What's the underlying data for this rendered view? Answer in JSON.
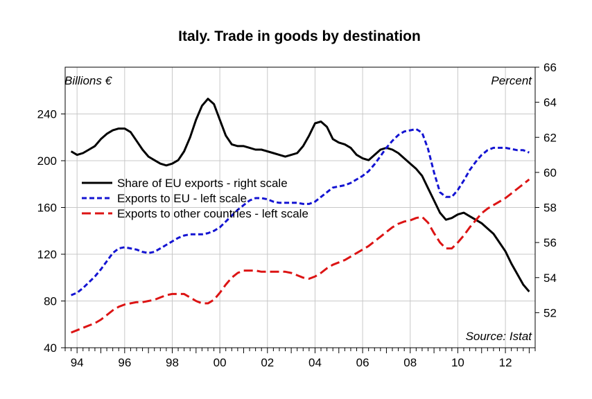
{
  "chart_data": {
    "type": "line",
    "title": "Italy. Trade in goods by destination",
    "left_unit_label": "Billions €",
    "right_unit_label": "Percent",
    "source": "Source: Istat",
    "x_range": [
      1993.5,
      2013.25
    ],
    "left_axis": {
      "ylim": [
        40,
        280
      ],
      "ticks": [
        40,
        80,
        120,
        160,
        200,
        240
      ]
    },
    "right_axis": {
      "ylim": [
        52,
        66
      ],
      "ticks": [
        52,
        54,
        56,
        58,
        60,
        62,
        64,
        66
      ]
    },
    "x_ticks": [
      {
        "x": 1994,
        "label": "94"
      },
      {
        "x": 1996,
        "label": "96"
      },
      {
        "x": 1998,
        "label": "98"
      },
      {
        "x": 2000,
        "label": "00"
      },
      {
        "x": 2002,
        "label": "02"
      },
      {
        "x": 2004,
        "label": "04"
      },
      {
        "x": 2006,
        "label": "06"
      },
      {
        "x": 2008,
        "label": "08"
      },
      {
        "x": 2010,
        "label": "10"
      },
      {
        "x": 2012,
        "label": "12"
      }
    ],
    "grid": true,
    "legend_position": "middle-left",
    "series": [
      {
        "name": "Share of EU exports - right scale",
        "axis": "right",
        "color": "#000000",
        "dash": "solid",
        "points": [
          [
            1993.75,
            61.2
          ],
          [
            1994.0,
            61.0
          ],
          [
            1994.25,
            61.1
          ],
          [
            1994.5,
            61.3
          ],
          [
            1994.75,
            61.5
          ],
          [
            1995.0,
            61.9
          ],
          [
            1995.25,
            62.2
          ],
          [
            1995.5,
            62.4
          ],
          [
            1995.75,
            62.5
          ],
          [
            1996.0,
            62.5
          ],
          [
            1996.25,
            62.3
          ],
          [
            1996.5,
            61.8
          ],
          [
            1996.75,
            61.3
          ],
          [
            1997.0,
            60.9
          ],
          [
            1997.25,
            60.7
          ],
          [
            1997.5,
            60.5
          ],
          [
            1997.75,
            60.4
          ],
          [
            1998.0,
            60.5
          ],
          [
            1998.25,
            60.7
          ],
          [
            1998.5,
            61.2
          ],
          [
            1998.75,
            62.0
          ],
          [
            1999.0,
            63.0
          ],
          [
            1999.25,
            63.8
          ],
          [
            1999.5,
            64.2
          ],
          [
            1999.75,
            63.9
          ],
          [
            2000.0,
            63.0
          ],
          [
            2000.25,
            62.1
          ],
          [
            2000.5,
            61.6
          ],
          [
            2000.75,
            61.5
          ],
          [
            2001.0,
            61.5
          ],
          [
            2001.25,
            61.4
          ],
          [
            2001.5,
            61.3
          ],
          [
            2001.75,
            61.3
          ],
          [
            2002.0,
            61.2
          ],
          [
            2002.25,
            61.1
          ],
          [
            2002.5,
            61.0
          ],
          [
            2002.75,
            60.9
          ],
          [
            2003.0,
            61.0
          ],
          [
            2003.25,
            61.1
          ],
          [
            2003.5,
            61.5
          ],
          [
            2003.75,
            62.1
          ],
          [
            2004.0,
            62.8
          ],
          [
            2004.25,
            62.9
          ],
          [
            2004.5,
            62.6
          ],
          [
            2004.75,
            61.9
          ],
          [
            2005.0,
            61.7
          ],
          [
            2005.25,
            61.6
          ],
          [
            2005.5,
            61.4
          ],
          [
            2005.75,
            61.0
          ],
          [
            2006.0,
            60.8
          ],
          [
            2006.25,
            60.7
          ],
          [
            2006.5,
            61.0
          ],
          [
            2006.75,
            61.3
          ],
          [
            2007.0,
            61.4
          ],
          [
            2007.25,
            61.3
          ],
          [
            2007.5,
            61.1
          ],
          [
            2007.75,
            60.8
          ],
          [
            2008.0,
            60.5
          ],
          [
            2008.25,
            60.2
          ],
          [
            2008.5,
            59.8
          ],
          [
            2008.75,
            59.1
          ],
          [
            2009.0,
            58.4
          ],
          [
            2009.25,
            57.7
          ],
          [
            2009.5,
            57.3
          ],
          [
            2009.75,
            57.4
          ],
          [
            2010.0,
            57.6
          ],
          [
            2010.25,
            57.7
          ],
          [
            2010.5,
            57.5
          ],
          [
            2010.75,
            57.3
          ],
          [
            2011.0,
            57.1
          ],
          [
            2011.25,
            56.8
          ],
          [
            2011.5,
            56.5
          ],
          [
            2011.75,
            56.0
          ],
          [
            2012.0,
            55.5
          ],
          [
            2012.25,
            54.8
          ],
          [
            2012.5,
            54.2
          ],
          [
            2012.75,
            53.6
          ],
          [
            2013.0,
            53.2
          ]
        ]
      },
      {
        "name": "Exports to EU - left scale",
        "axis": "left",
        "color": "#1414d2",
        "dash": "short",
        "points": [
          [
            1993.75,
            85
          ],
          [
            1994.0,
            87
          ],
          [
            1994.25,
            91
          ],
          [
            1994.5,
            96
          ],
          [
            1994.75,
            101
          ],
          [
            1995.0,
            107
          ],
          [
            1995.25,
            114
          ],
          [
            1995.5,
            121
          ],
          [
            1995.75,
            125
          ],
          [
            1996.0,
            126
          ],
          [
            1996.25,
            125
          ],
          [
            1996.5,
            124
          ],
          [
            1996.75,
            122
          ],
          [
            1997.0,
            121
          ],
          [
            1997.25,
            122
          ],
          [
            1997.5,
            125
          ],
          [
            1997.75,
            128
          ],
          [
            1998.0,
            131
          ],
          [
            1998.25,
            134
          ],
          [
            1998.5,
            136
          ],
          [
            1998.75,
            137
          ],
          [
            1999.0,
            137
          ],
          [
            1999.25,
            137
          ],
          [
            1999.5,
            138
          ],
          [
            1999.75,
            140
          ],
          [
            2000.0,
            143
          ],
          [
            2000.25,
            148
          ],
          [
            2000.5,
            153
          ],
          [
            2000.75,
            158
          ],
          [
            2001.0,
            162
          ],
          [
            2001.25,
            166
          ],
          [
            2001.5,
            168
          ],
          [
            2001.75,
            168
          ],
          [
            2002.0,
            167
          ],
          [
            2002.25,
            165
          ],
          [
            2002.5,
            164
          ],
          [
            2002.75,
            164
          ],
          [
            2003.0,
            164
          ],
          [
            2003.25,
            164
          ],
          [
            2003.5,
            163
          ],
          [
            2003.75,
            163
          ],
          [
            2004.0,
            165
          ],
          [
            2004.25,
            169
          ],
          [
            2004.5,
            173
          ],
          [
            2004.75,
            177
          ],
          [
            2005.0,
            178
          ],
          [
            2005.25,
            179
          ],
          [
            2005.5,
            181
          ],
          [
            2005.75,
            184
          ],
          [
            2006.0,
            187
          ],
          [
            2006.25,
            191
          ],
          [
            2006.5,
            197
          ],
          [
            2006.75,
            204
          ],
          [
            2007.0,
            211
          ],
          [
            2007.25,
            217
          ],
          [
            2007.5,
            222
          ],
          [
            2007.75,
            225
          ],
          [
            2008.0,
            226
          ],
          [
            2008.25,
            227
          ],
          [
            2008.5,
            224
          ],
          [
            2008.75,
            210
          ],
          [
            2009.0,
            190
          ],
          [
            2009.25,
            173
          ],
          [
            2009.5,
            169
          ],
          [
            2009.75,
            169
          ],
          [
            2010.0,
            175
          ],
          [
            2010.25,
            183
          ],
          [
            2010.5,
            192
          ],
          [
            2010.75,
            199
          ],
          [
            2011.0,
            205
          ],
          [
            2011.25,
            209
          ],
          [
            2011.5,
            211
          ],
          [
            2011.75,
            211
          ],
          [
            2012.0,
            211
          ],
          [
            2012.25,
            210
          ],
          [
            2012.5,
            209
          ],
          [
            2012.75,
            209
          ],
          [
            2013.0,
            207
          ]
        ]
      },
      {
        "name": "Exports to other countries - left scale",
        "axis": "left",
        "color": "#dc1414",
        "dash": "long",
        "points": [
          [
            1993.75,
            53
          ],
          [
            1994.0,
            55
          ],
          [
            1994.25,
            57
          ],
          [
            1994.5,
            59
          ],
          [
            1994.75,
            61
          ],
          [
            1995.0,
            64
          ],
          [
            1995.25,
            68
          ],
          [
            1995.5,
            72
          ],
          [
            1995.75,
            75
          ],
          [
            1996.0,
            77
          ],
          [
            1996.25,
            78
          ],
          [
            1996.5,
            79
          ],
          [
            1996.75,
            79
          ],
          [
            1997.0,
            80
          ],
          [
            1997.25,
            81
          ],
          [
            1997.5,
            83
          ],
          [
            1997.75,
            85
          ],
          [
            1998.0,
            86
          ],
          [
            1998.25,
            86
          ],
          [
            1998.5,
            86
          ],
          [
            1998.75,
            83
          ],
          [
            1999.0,
            80
          ],
          [
            1999.25,
            78
          ],
          [
            1999.5,
            78
          ],
          [
            1999.75,
            81
          ],
          [
            2000.0,
            87
          ],
          [
            2000.25,
            94
          ],
          [
            2000.5,
            100
          ],
          [
            2000.75,
            104
          ],
          [
            2001.0,
            106
          ],
          [
            2001.25,
            106
          ],
          [
            2001.5,
            106
          ],
          [
            2001.75,
            105
          ],
          [
            2002.0,
            105
          ],
          [
            2002.25,
            105
          ],
          [
            2002.5,
            105
          ],
          [
            2002.75,
            105
          ],
          [
            2003.0,
            104
          ],
          [
            2003.25,
            102
          ],
          [
            2003.5,
            100
          ],
          [
            2003.75,
            99
          ],
          [
            2004.0,
            101
          ],
          [
            2004.25,
            104
          ],
          [
            2004.5,
            108
          ],
          [
            2004.75,
            111
          ],
          [
            2005.0,
            113
          ],
          [
            2005.25,
            115
          ],
          [
            2005.5,
            118
          ],
          [
            2005.75,
            121
          ],
          [
            2006.0,
            124
          ],
          [
            2006.25,
            127
          ],
          [
            2006.5,
            131
          ],
          [
            2006.75,
            135
          ],
          [
            2007.0,
            139
          ],
          [
            2007.25,
            143
          ],
          [
            2007.5,
            146
          ],
          [
            2007.75,
            148
          ],
          [
            2008.0,
            149
          ],
          [
            2008.25,
            151
          ],
          [
            2008.5,
            152
          ],
          [
            2008.75,
            147
          ],
          [
            2009.0,
            138
          ],
          [
            2009.25,
            130
          ],
          [
            2009.5,
            125
          ],
          [
            2009.75,
            125
          ],
          [
            2010.0,
            130
          ],
          [
            2010.25,
            136
          ],
          [
            2010.5,
            143
          ],
          [
            2010.75,
            149
          ],
          [
            2011.0,
            155
          ],
          [
            2011.25,
            159
          ],
          [
            2011.5,
            162
          ],
          [
            2011.75,
            165
          ],
          [
            2012.0,
            168
          ],
          [
            2012.25,
            172
          ],
          [
            2012.5,
            176
          ],
          [
            2012.75,
            180
          ],
          [
            2013.0,
            184
          ]
        ]
      }
    ]
  }
}
